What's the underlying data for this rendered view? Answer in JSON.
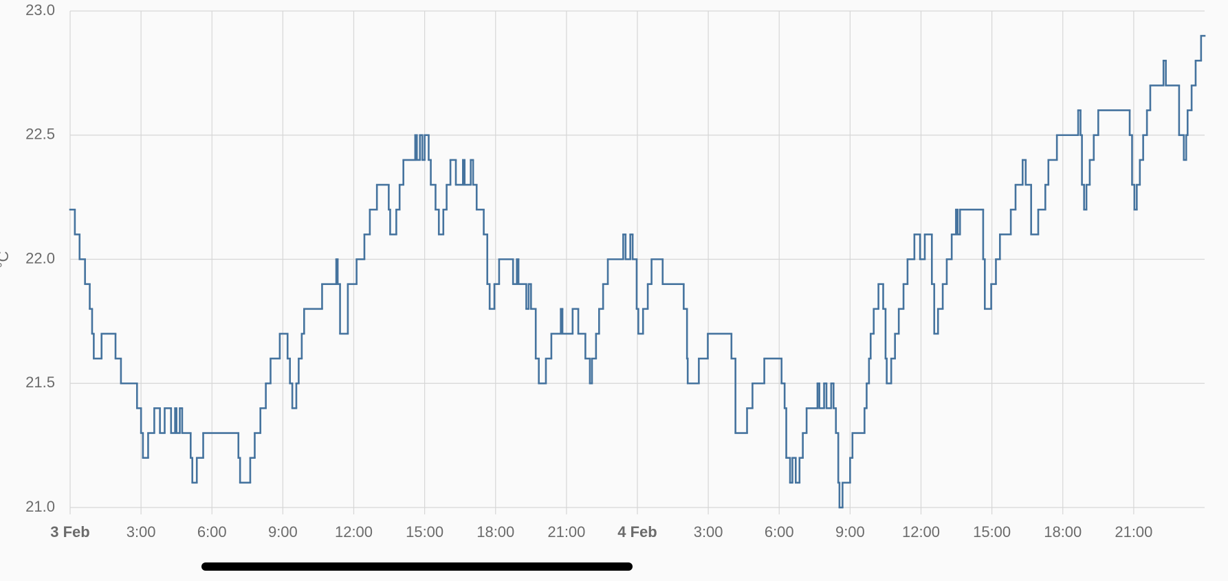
{
  "chart_data": {
    "type": "step-line",
    "y_label": "°C",
    "color": "#45739e",
    "grid": true,
    "xlim": [
      0,
      48
    ],
    "xticks": [
      {
        "value": 0,
        "label": "3 Feb"
      },
      {
        "value": 3,
        "label": "3:00"
      },
      {
        "value": 6,
        "label": "6:00"
      },
      {
        "value": 9,
        "label": "9:00"
      },
      {
        "value": 12,
        "label": "12:00"
      },
      {
        "value": 15,
        "label": "15:00"
      },
      {
        "value": 18,
        "label": "18:00"
      },
      {
        "value": 21,
        "label": "21:00"
      },
      {
        "value": 24,
        "label": "4 Feb"
      },
      {
        "value": 27,
        "label": "3:00"
      },
      {
        "value": 30,
        "label": "6:00"
      },
      {
        "value": 33,
        "label": "9:00"
      },
      {
        "value": 36,
        "label": "12:00"
      },
      {
        "value": 39,
        "label": "15:00"
      },
      {
        "value": 42,
        "label": "18:00"
      },
      {
        "value": 45,
        "label": "21:00"
      }
    ],
    "ylim": [
      21,
      23
    ],
    "yticks": [
      {
        "value": 21,
        "label": "21.0"
      },
      21.5,
      {
        "value": 22,
        "label": "22.0"
      },
      22.5,
      {
        "value": 23,
        "label": "23.0"
      }
    ],
    "x": [
      0,
      0.2,
      0.4,
      0.63,
      0.83,
      0.93,
      1.0,
      1.33,
      1.92,
      2.15,
      2.83,
      3.0,
      3.08,
      3.3,
      3.56,
      3.8,
      4.0,
      4.27,
      4.44,
      4.5,
      4.64,
      4.74,
      5.1,
      5.17,
      5.36,
      5.63,
      7.12,
      7.19,
      7.62,
      7.81,
      8.05,
      8.28,
      8.48,
      8.87,
      9.2,
      9.3,
      9.4,
      9.57,
      9.67,
      9.8,
      9.9,
      10.66,
      11.26,
      11.32,
      11.42,
      11.75,
      12.12,
      12.45,
      12.68,
      12.98,
      13.48,
      13.54,
      13.8,
      13.94,
      14.1,
      14.6,
      14.67,
      14.8,
      14.9,
      15.0,
      15.17,
      15.26,
      15.46,
      15.6,
      15.79,
      15.93,
      16.09,
      16.32,
      16.62,
      16.69,
      16.95,
      17.05,
      17.2,
      17.5,
      17.65,
      17.75,
      17.95,
      18.15,
      18.74,
      18.9,
      18.97,
      19.3,
      19.4,
      19.5,
      19.7,
      19.83,
      20.13,
      20.36,
      20.76,
      20.83,
      21.26,
      21.5,
      21.8,
      21.99,
      22.08,
      22.25,
      22.38,
      22.55,
      22.75,
      23.4,
      23.5,
      23.7,
      23.8,
      23.97,
      24.04,
      24.24,
      24.44,
      24.6,
      25.07,
      25.96,
      26.1,
      26.13,
      26.6,
      26.98,
      27.98,
      28.15,
      28.64,
      28.87,
      29.37,
      30.1,
      30.23,
      30.3,
      30.46,
      30.56,
      30.7,
      30.86,
      31.0,
      31.16,
      31.62,
      31.7,
      31.9,
      32.0,
      32.2,
      32.3,
      32.4,
      32.5,
      32.55,
      32.68,
      33.0,
      33.1,
      33.61,
      33.7,
      33.8,
      33.87,
      34.0,
      34.2,
      34.4,
      34.5,
      34.55,
      34.74,
      34.9,
      35.06,
      35.26,
      35.43,
      35.72,
      35.96,
      36.16,
      36.46,
      36.56,
      36.72,
      36.92,
      37.09,
      37.3,
      37.48,
      37.55,
      37.65,
      38.63,
      38.7,
      38.97,
      39.17,
      39.34,
      39.8,
      40.0,
      40.3,
      40.43,
      40.66,
      40.96,
      41.26,
      41.39,
      41.75,
      42.65,
      42.75,
      42.81,
      42.9,
      43.0,
      43.14,
      43.31,
      43.5,
      44.83,
      44.93,
      45.03,
      45.13,
      45.26,
      45.4,
      45.56,
      45.7,
      46.26,
      46.36,
      46.92,
      47.12,
      47.22,
      47.28,
      47.45,
      47.62,
      47.85
    ],
    "values": [
      22.2,
      22.1,
      22.0,
      21.9,
      21.8,
      21.7,
      21.6,
      21.7,
      21.6,
      21.5,
      21.4,
      21.3,
      21.2,
      21.3,
      21.4,
      21.3,
      21.4,
      21.3,
      21.4,
      21.3,
      21.4,
      21.3,
      21.2,
      21.1,
      21.2,
      21.3,
      21.2,
      21.1,
      21.2,
      21.3,
      21.4,
      21.5,
      21.6,
      21.7,
      21.6,
      21.5,
      21.4,
      21.5,
      21.6,
      21.7,
      21.8,
      21.9,
      22.0,
      21.9,
      21.7,
      21.9,
      22.0,
      22.1,
      22.2,
      22.3,
      22.2,
      22.1,
      22.2,
      22.3,
      22.4,
      22.5,
      22.4,
      22.5,
      22.4,
      22.5,
      22.4,
      22.3,
      22.2,
      22.1,
      22.2,
      22.3,
      22.4,
      22.3,
      22.4,
      22.3,
      22.4,
      22.3,
      22.2,
      22.1,
      21.9,
      21.8,
      21.9,
      22.0,
      21.9,
      22.0,
      21.9,
      21.8,
      21.9,
      21.8,
      21.6,
      21.5,
      21.6,
      21.7,
      21.8,
      21.7,
      21.8,
      21.7,
      21.6,
      21.5,
      21.6,
      21.7,
      21.8,
      21.9,
      22.0,
      22.1,
      22.0,
      22.1,
      22.0,
      21.8,
      21.7,
      21.8,
      21.9,
      22.0,
      21.9,
      21.8,
      21.6,
      21.5,
      21.6,
      21.7,
      21.6,
      21.3,
      21.4,
      21.5,
      21.6,
      21.5,
      21.4,
      21.2,
      21.1,
      21.2,
      21.1,
      21.2,
      21.3,
      21.4,
      21.5,
      21.4,
      21.5,
      21.4,
      21.5,
      21.4,
      21.3,
      21.1,
      21.0,
      21.1,
      21.2,
      21.3,
      21.4,
      21.5,
      21.6,
      21.7,
      21.8,
      21.9,
      21.8,
      21.6,
      21.5,
      21.6,
      21.7,
      21.8,
      21.9,
      22.0,
      22.1,
      22.0,
      22.1,
      21.9,
      21.7,
      21.8,
      21.9,
      22.0,
      22.1,
      22.2,
      22.1,
      22.2,
      22.0,
      21.8,
      21.9,
      22.0,
      22.1,
      22.2,
      22.3,
      22.4,
      22.3,
      22.1,
      22.2,
      22.3,
      22.4,
      22.5,
      22.6,
      22.5,
      22.3,
      22.2,
      22.3,
      22.4,
      22.5,
      22.6,
      22.5,
      22.3,
      22.2,
      22.3,
      22.4,
      22.5,
      22.6,
      22.7,
      22.8,
      22.7,
      22.5,
      22.4,
      22.5,
      22.6,
      22.7,
      22.8,
      22.9
    ]
  }
}
